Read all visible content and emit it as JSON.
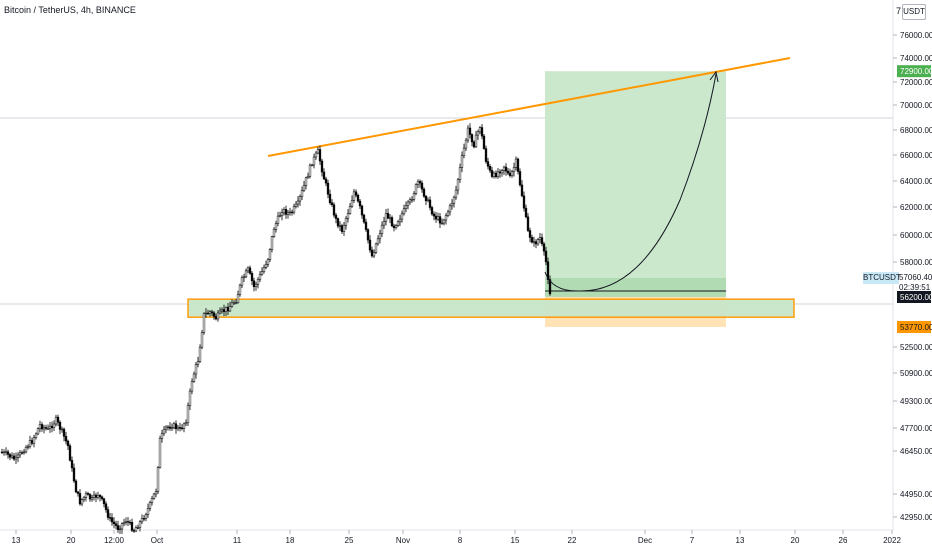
{
  "header": {
    "symbol": "Bitcoin / TetherUS, 4h, BINANCE",
    "currency": "USDT",
    "currency_prefix": "7"
  },
  "side_label": "BTCUSDT",
  "readouts": {
    "last_price": "57060.40",
    "countdown": "02:39:51"
  },
  "colors": {
    "up_candle": "#ffffff",
    "down_candle": "#000000",
    "trendline": "#ff9800",
    "support_zone_fill": "#c8e6c9",
    "profit_zone": "#c8e6c9",
    "loss_zone": "#ffe0b2",
    "target_badge": "#4caf50",
    "stop_badge": "#ff9800",
    "axis_text": "#131722",
    "grid_line": "#d1d4dc"
  },
  "chart_data": {
    "type": "candlestick",
    "title": "Bitcoin / TetherUS, 4h, BINANCE",
    "y_axis": {
      "ticks": [
        "76000.00",
        "74000.00",
        "72000.00",
        "70000.00",
        "68000.00",
        "66000.00",
        "64000.00",
        "62000.00",
        "60000.00",
        "58000.00",
        "52500.00",
        "50900.00",
        "49300.00",
        "47700.00",
        "46450.00",
        "44950.00",
        "42950.00"
      ]
    },
    "x_axis": {
      "ticks": [
        "13",
        "20",
        "12:00",
        "Oct",
        "11",
        "18",
        "25",
        "Nov",
        "8",
        "15",
        "22",
        "Dec",
        "7",
        "13",
        "20",
        "26",
        "2022"
      ]
    },
    "markers": {
      "target": "72900.00",
      "current": "56200.00",
      "stop": "53770.00"
    },
    "annotations": {
      "resistance_line": {
        "from": [
          "18",
          "66500"
        ],
        "to": [
          "20",
          "74000"
        ]
      },
      "support_zone": {
        "low": 53900,
        "high": 55700
      },
      "long_position": {
        "entry": 56200,
        "target": 72900,
        "stop": 53770
      },
      "projected_path": "rebound from 56200 up to 72900"
    }
  }
}
